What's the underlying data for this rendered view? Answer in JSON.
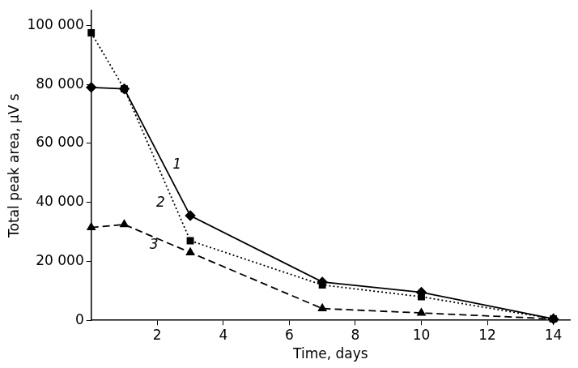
{
  "chart_data": {
    "type": "line",
    "x_label": "Time, days",
    "y_label": "Total peak area, µV s",
    "x": [
      0,
      1,
      3,
      7,
      10,
      14
    ],
    "series": [
      {
        "name": "1",
        "color": "#000000",
        "marker": "diamond",
        "line_style": "solid",
        "values": [
          79000,
          78500,
          35500,
          13000,
          9500,
          500
        ]
      },
      {
        "name": "2",
        "color": "#000000",
        "marker": "square",
        "line_style": "dotted",
        "values": [
          97500,
          78500,
          27000,
          12000,
          8000,
          500
        ]
      },
      {
        "name": "3",
        "color": "#000000",
        "marker": "triangle",
        "line_style": "dashed",
        "values": [
          31500,
          32500,
          23000,
          4000,
          2500,
          500
        ]
      }
    ],
    "annotations": [
      {
        "text": "1",
        "x": 2.6,
        "y": 52700
      },
      {
        "text": "2",
        "x": 2.1,
        "y": 39700
      },
      {
        "text": "3",
        "x": 1.9,
        "y": 25400
      }
    ],
    "xlim": [
      0,
      14.5
    ],
    "xticks": [
      2,
      4,
      6,
      8,
      10,
      12,
      14
    ],
    "ylim": [
      0,
      105000
    ],
    "yticks": [
      0,
      {
        "value": 20000,
        "label": "20 000"
      },
      {
        "value": 40000,
        "label": "40 000"
      },
      {
        "value": 60000,
        "label": "60 000"
      },
      {
        "value": 80000,
        "label": "80 000"
      },
      {
        "value": 100000,
        "label": "100 000"
      }
    ],
    "grid": false
  }
}
